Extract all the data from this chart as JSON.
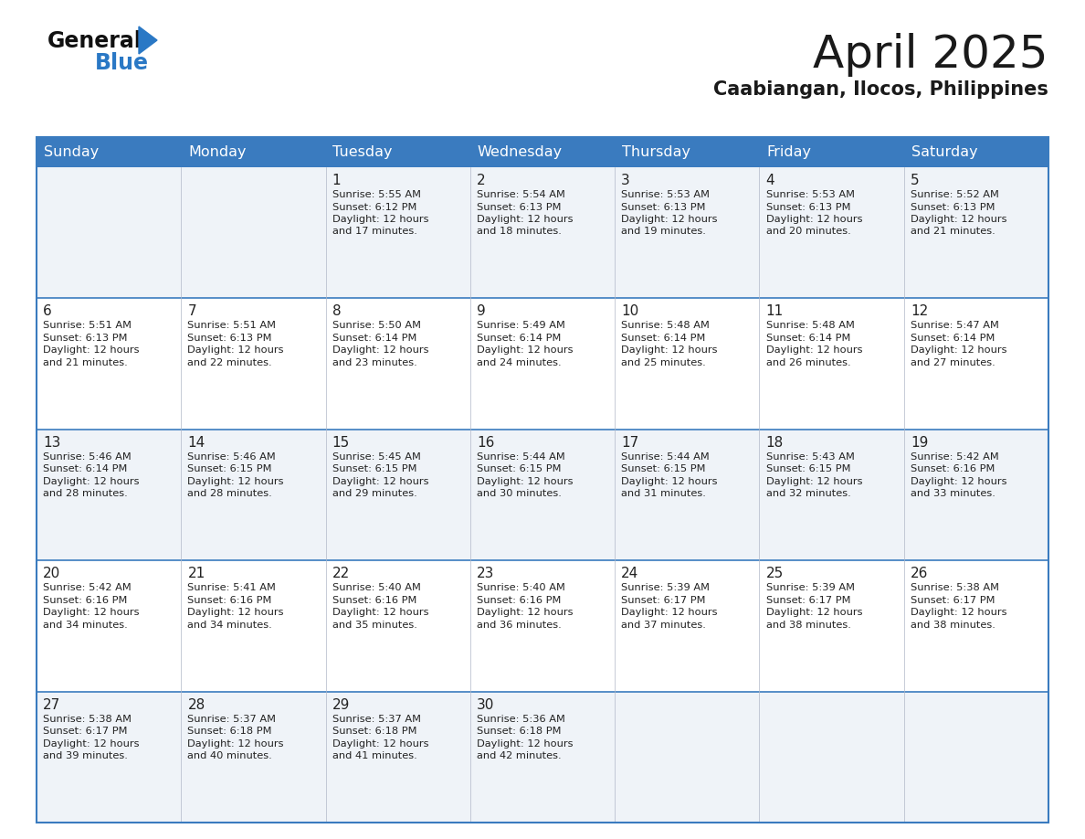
{
  "title": "April 2025",
  "subtitle": "Caabiangan, Ilocos, Philippines",
  "header_bg_color": "#3a7bbf",
  "header_text_color": "#ffffff",
  "day_names": [
    "Sunday",
    "Monday",
    "Tuesday",
    "Wednesday",
    "Thursday",
    "Friday",
    "Saturday"
  ],
  "cell_bg_even": "#eff3f8",
  "cell_bg_odd": "#ffffff",
  "title_color": "#1a1a1a",
  "subtitle_color": "#1a1a1a",
  "border_color": "#3a7bbf",
  "text_color": "#222222",
  "logo_general_color": "#1a1a1a",
  "logo_blue_color": "#2a78c5",
  "logo_triangle_color": "#2a78c5",
  "days": [
    {
      "day": 1,
      "col": 2,
      "row": 0,
      "sunrise": "5:55 AM",
      "sunset": "6:12 PM",
      "daylight_hours": 12,
      "daylight_minutes": 17
    },
    {
      "day": 2,
      "col": 3,
      "row": 0,
      "sunrise": "5:54 AM",
      "sunset": "6:13 PM",
      "daylight_hours": 12,
      "daylight_minutes": 18
    },
    {
      "day": 3,
      "col": 4,
      "row": 0,
      "sunrise": "5:53 AM",
      "sunset": "6:13 PM",
      "daylight_hours": 12,
      "daylight_minutes": 19
    },
    {
      "day": 4,
      "col": 5,
      "row": 0,
      "sunrise": "5:53 AM",
      "sunset": "6:13 PM",
      "daylight_hours": 12,
      "daylight_minutes": 20
    },
    {
      "day": 5,
      "col": 6,
      "row": 0,
      "sunrise": "5:52 AM",
      "sunset": "6:13 PM",
      "daylight_hours": 12,
      "daylight_minutes": 21
    },
    {
      "day": 6,
      "col": 0,
      "row": 1,
      "sunrise": "5:51 AM",
      "sunset": "6:13 PM",
      "daylight_hours": 12,
      "daylight_minutes": 21
    },
    {
      "day": 7,
      "col": 1,
      "row": 1,
      "sunrise": "5:51 AM",
      "sunset": "6:13 PM",
      "daylight_hours": 12,
      "daylight_minutes": 22
    },
    {
      "day": 8,
      "col": 2,
      "row": 1,
      "sunrise": "5:50 AM",
      "sunset": "6:14 PM",
      "daylight_hours": 12,
      "daylight_minutes": 23
    },
    {
      "day": 9,
      "col": 3,
      "row": 1,
      "sunrise": "5:49 AM",
      "sunset": "6:14 PM",
      "daylight_hours": 12,
      "daylight_minutes": 24
    },
    {
      "day": 10,
      "col": 4,
      "row": 1,
      "sunrise": "5:48 AM",
      "sunset": "6:14 PM",
      "daylight_hours": 12,
      "daylight_minutes": 25
    },
    {
      "day": 11,
      "col": 5,
      "row": 1,
      "sunrise": "5:48 AM",
      "sunset": "6:14 PM",
      "daylight_hours": 12,
      "daylight_minutes": 26
    },
    {
      "day": 12,
      "col": 6,
      "row": 1,
      "sunrise": "5:47 AM",
      "sunset": "6:14 PM",
      "daylight_hours": 12,
      "daylight_minutes": 27
    },
    {
      "day": 13,
      "col": 0,
      "row": 2,
      "sunrise": "5:46 AM",
      "sunset": "6:14 PM",
      "daylight_hours": 12,
      "daylight_minutes": 28
    },
    {
      "day": 14,
      "col": 1,
      "row": 2,
      "sunrise": "5:46 AM",
      "sunset": "6:15 PM",
      "daylight_hours": 12,
      "daylight_minutes": 28
    },
    {
      "day": 15,
      "col": 2,
      "row": 2,
      "sunrise": "5:45 AM",
      "sunset": "6:15 PM",
      "daylight_hours": 12,
      "daylight_minutes": 29
    },
    {
      "day": 16,
      "col": 3,
      "row": 2,
      "sunrise": "5:44 AM",
      "sunset": "6:15 PM",
      "daylight_hours": 12,
      "daylight_minutes": 30
    },
    {
      "day": 17,
      "col": 4,
      "row": 2,
      "sunrise": "5:44 AM",
      "sunset": "6:15 PM",
      "daylight_hours": 12,
      "daylight_minutes": 31
    },
    {
      "day": 18,
      "col": 5,
      "row": 2,
      "sunrise": "5:43 AM",
      "sunset": "6:15 PM",
      "daylight_hours": 12,
      "daylight_minutes": 32
    },
    {
      "day": 19,
      "col": 6,
      "row": 2,
      "sunrise": "5:42 AM",
      "sunset": "6:16 PM",
      "daylight_hours": 12,
      "daylight_minutes": 33
    },
    {
      "day": 20,
      "col": 0,
      "row": 3,
      "sunrise": "5:42 AM",
      "sunset": "6:16 PM",
      "daylight_hours": 12,
      "daylight_minutes": 34
    },
    {
      "day": 21,
      "col": 1,
      "row": 3,
      "sunrise": "5:41 AM",
      "sunset": "6:16 PM",
      "daylight_hours": 12,
      "daylight_minutes": 34
    },
    {
      "day": 22,
      "col": 2,
      "row": 3,
      "sunrise": "5:40 AM",
      "sunset": "6:16 PM",
      "daylight_hours": 12,
      "daylight_minutes": 35
    },
    {
      "day": 23,
      "col": 3,
      "row": 3,
      "sunrise": "5:40 AM",
      "sunset": "6:16 PM",
      "daylight_hours": 12,
      "daylight_minutes": 36
    },
    {
      "day": 24,
      "col": 4,
      "row": 3,
      "sunrise": "5:39 AM",
      "sunset": "6:17 PM",
      "daylight_hours": 12,
      "daylight_minutes": 37
    },
    {
      "day": 25,
      "col": 5,
      "row": 3,
      "sunrise": "5:39 AM",
      "sunset": "6:17 PM",
      "daylight_hours": 12,
      "daylight_minutes": 38
    },
    {
      "day": 26,
      "col": 6,
      "row": 3,
      "sunrise": "5:38 AM",
      "sunset": "6:17 PM",
      "daylight_hours": 12,
      "daylight_minutes": 38
    },
    {
      "day": 27,
      "col": 0,
      "row": 4,
      "sunrise": "5:38 AM",
      "sunset": "6:17 PM",
      "daylight_hours": 12,
      "daylight_minutes": 39
    },
    {
      "day": 28,
      "col": 1,
      "row": 4,
      "sunrise": "5:37 AM",
      "sunset": "6:18 PM",
      "daylight_hours": 12,
      "daylight_minutes": 40
    },
    {
      "day": 29,
      "col": 2,
      "row": 4,
      "sunrise": "5:37 AM",
      "sunset": "6:18 PM",
      "daylight_hours": 12,
      "daylight_minutes": 41
    },
    {
      "day": 30,
      "col": 3,
      "row": 4,
      "sunrise": "5:36 AM",
      "sunset": "6:18 PM",
      "daylight_hours": 12,
      "daylight_minutes": 42
    }
  ]
}
